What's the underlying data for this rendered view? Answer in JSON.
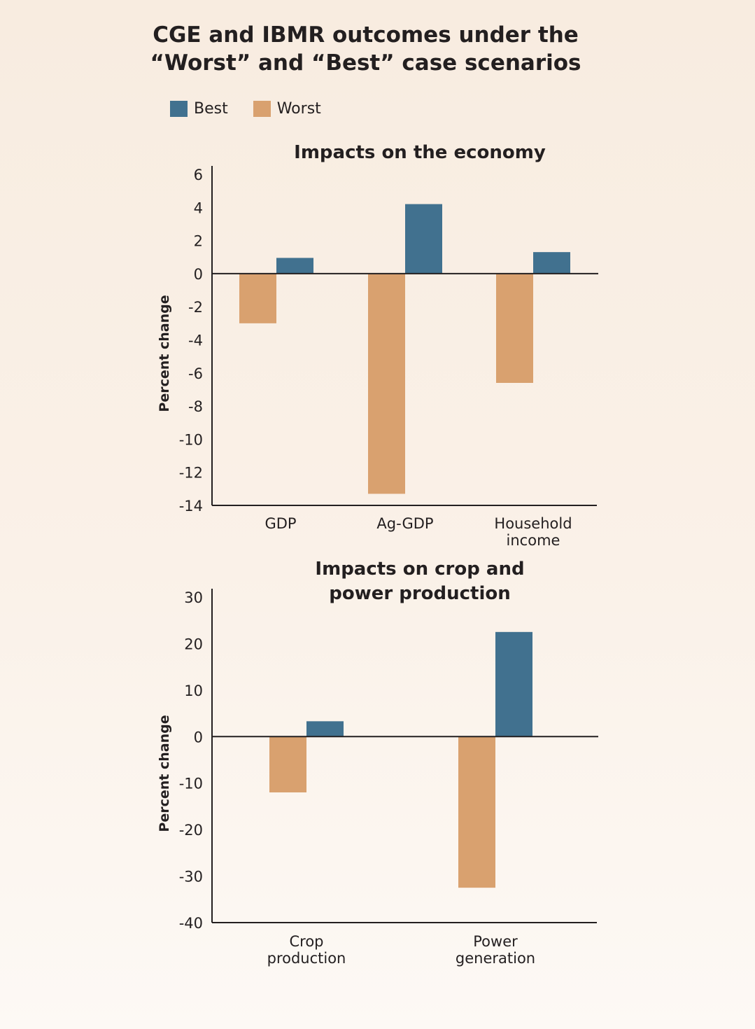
{
  "title_line1": "CGE and IBMR outcomes under the",
  "title_line2": "“Worst” and “Best” case scenarios",
  "legend": [
    {
      "label": "Best",
      "color": "#41718f"
    },
    {
      "label": "Worst",
      "color": "#d9a16f"
    }
  ],
  "chart_data": [
    {
      "type": "bar",
      "title": [
        "Impacts on the economy"
      ],
      "ylabel": "Percent change",
      "categories": [
        [
          "GDP"
        ],
        [
          "Ag-GDP"
        ],
        [
          "Household",
          "income"
        ]
      ],
      "series": [
        {
          "name": "Worst",
          "color": "#d9a16f",
          "values": [
            -3.0,
            -13.3,
            -6.6
          ]
        },
        {
          "name": "Best",
          "color": "#41718f",
          "values": [
            0.95,
            4.2,
            1.3
          ]
        }
      ],
      "ylim": [
        -14,
        6
      ],
      "yticks": [
        6,
        4,
        2,
        0,
        -2,
        -4,
        -6,
        -8,
        -10,
        -12,
        -14
      ],
      "legend": "top-left"
    },
    {
      "type": "bar",
      "title": [
        "Impacts on crop and",
        "power production"
      ],
      "ylabel": "Percent change",
      "categories": [
        [
          "Crop",
          "production"
        ],
        [
          "Power",
          "generation"
        ]
      ],
      "series": [
        {
          "name": "Worst",
          "color": "#d9a16f",
          "values": [
            -12.0,
            -32.5
          ]
        },
        {
          "name": "Best",
          "color": "#41718f",
          "values": [
            3.3,
            22.5
          ]
        }
      ],
      "ylim": [
        -40,
        30
      ],
      "yticks": [
        30,
        20,
        10,
        0,
        -10,
        -20,
        -30,
        -40
      ],
      "legend": "top-left"
    }
  ]
}
